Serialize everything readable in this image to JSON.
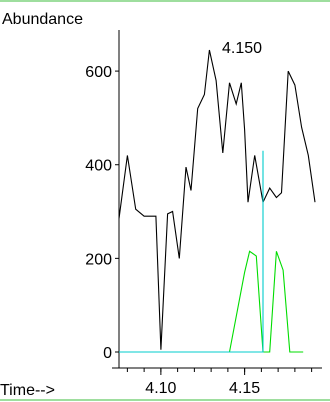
{
  "chart_data": {
    "type": "line",
    "ylabel": "Abundance",
    "xlabel": "Time-->",
    "annotation": "4.150",
    "xlim": [
      4.075,
      4.195
    ],
    "ylim": [
      0,
      660
    ],
    "y_ticks": [
      0,
      200,
      400,
      600
    ],
    "x_ticks": [
      4.1,
      4.15
    ],
    "x_tick_labels": [
      "4.10",
      "4.15"
    ],
    "grid": false,
    "border_color": "#7fd37f",
    "series": [
      {
        "color": "#000000",
        "x": [
          4.075,
          4.08,
          4.085,
          4.09,
          4.093,
          4.097,
          4.1,
          4.104,
          4.107,
          4.111,
          4.115,
          4.118,
          4.122,
          4.126,
          4.129,
          4.133,
          4.137,
          4.141,
          4.145,
          4.148,
          4.15,
          4.152,
          4.156,
          4.161,
          4.165,
          4.169,
          4.172,
          4.176,
          4.18,
          4.184,
          4.188,
          4.192
        ],
        "y": [
          285,
          420,
          305,
          290,
          290,
          290,
          5,
          295,
          300,
          200,
          395,
          345,
          520,
          550,
          645,
          580,
          425,
          575,
          530,
          575,
          475,
          320,
          420,
          320,
          350,
          330,
          340,
          600,
          570,
          480,
          420,
          320
        ]
      },
      {
        "color": "#00dd00",
        "x": [
          4.075,
          4.141,
          4.15,
          4.153,
          4.157,
          4.161,
          4.165,
          4.169,
          4.173,
          4.177,
          4.181,
          4.185
        ],
        "y": [
          0,
          0,
          170,
          215,
          205,
          0,
          0,
          215,
          175,
          0,
          0,
          0
        ]
      },
      {
        "color": "#00cccc",
        "x": [
          4.075,
          4.161,
          4.161
        ],
        "y": [
          0,
          0,
          430
        ]
      }
    ]
  }
}
